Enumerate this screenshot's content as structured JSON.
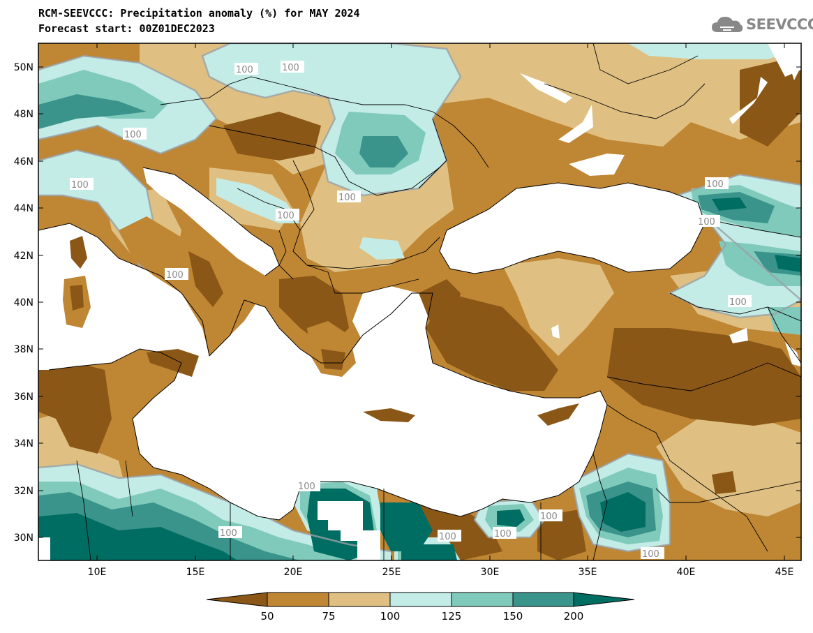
{
  "header": {
    "title_line1": "RCM-SEEVCCC: Precipitation anomaly (%) for MAY 2024",
    "title_line2": "Forecast start: 00Z01DEC2023"
  },
  "logo": {
    "text": "SEEVCCC",
    "icon": "cloud-logo-icon"
  },
  "map": {
    "lat_labels": [
      "50N",
      "48N",
      "46N",
      "44N",
      "42N",
      "40N",
      "38N",
      "36N",
      "34N",
      "32N",
      "30N"
    ],
    "lon_labels": [
      "10E",
      "15E",
      "20E",
      "25E",
      "30E",
      "35E",
      "40E",
      "45E"
    ],
    "contour_label": "100"
  },
  "colorbar": {
    "labels": [
      "50",
      "75",
      "100",
      "125",
      "150",
      "200"
    ],
    "colors": [
      "#8b5716",
      "#bf8634",
      "#dfc082",
      "#c4ece6",
      "#7fcabb",
      "#3a948c",
      "#006d62"
    ]
  }
}
